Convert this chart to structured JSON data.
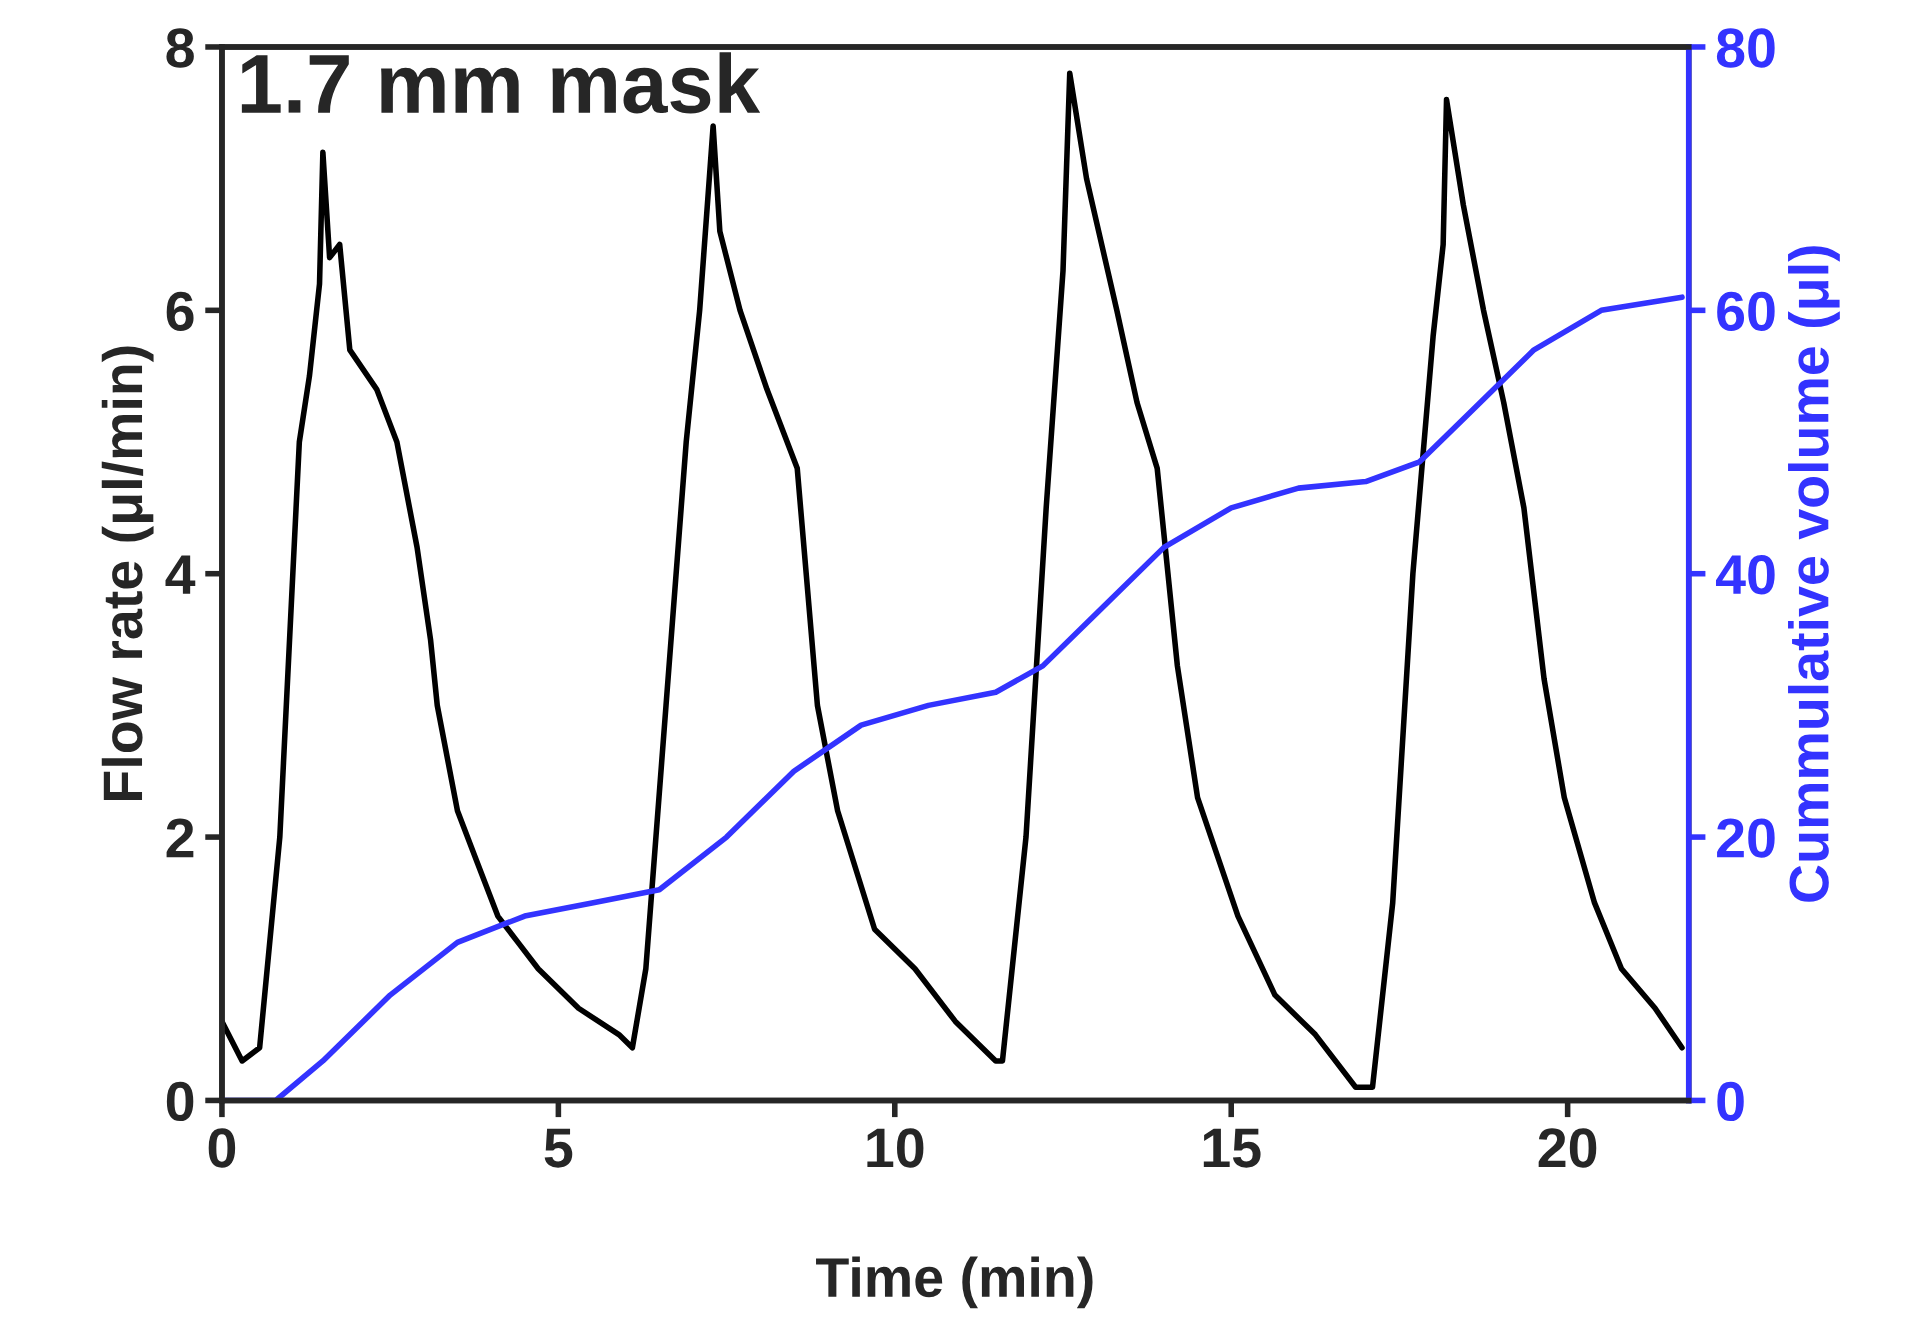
{
  "chart_data": {
    "type": "line",
    "xlabel": "Time (min)",
    "ylabel": "Flow rate (μl/min)",
    "y2label": "Cummulative volume (μl)",
    "annotations": [
      "1.7 mm mask"
    ],
    "xlim": [
      0,
      21.8
    ],
    "xticks": [
      0,
      5,
      10,
      15,
      20
    ],
    "ylim": [
      0,
      8
    ],
    "yticks": [
      0,
      2,
      4,
      6,
      8
    ],
    "y2lim": [
      0,
      80
    ],
    "y2ticks": [
      0,
      20,
      40,
      60,
      80
    ],
    "grid": false,
    "legend": false,
    "series": [
      {
        "color": "#000000",
        "x": [
          0,
          0.3,
          0.56,
          0.86,
          1.15,
          1.3,
          1.45,
          1.5,
          1.6,
          1.75,
          1.9,
          2.3,
          2.6,
          2.9,
          3.1,
          3.2,
          3.5,
          3.8,
          4.1,
          4.4,
          4.7,
          5.3,
          5.9,
          6.1,
          6.3,
          6.6,
          6.9,
          7.1,
          7.3,
          7.4,
          7.7,
          8.1,
          8.55,
          8.85,
          9.15,
          9.7,
          10.3,
          10.9,
          11.5,
          11.6,
          11.95,
          12.25,
          12.5,
          12.6,
          12.85,
          13.3,
          13.6,
          13.9,
          14.2,
          14.5,
          15.1,
          15.65,
          16.25,
          16.85,
          17.1,
          17.4,
          17.7,
          18.0,
          18.15,
          18.2,
          18.45,
          18.75,
          19.05,
          19.35,
          19.65,
          19.95,
          20.4,
          20.8,
          21.3,
          21.7
        ],
        "values": [
          0.6,
          0.3,
          0.4,
          2,
          5,
          5.5,
          6.2,
          7.2,
          6.4,
          6.5,
          5.7,
          5.4,
          5.0,
          4.2,
          3.5,
          3.0,
          2.2,
          1.8,
          1.4,
          1.2,
          1.0,
          0.7,
          0.5,
          0.4,
          1,
          3,
          5,
          6.0,
          7.4,
          6.6,
          6.0,
          5.4,
          4.8,
          3.0,
          2.2,
          1.3,
          1.0,
          0.6,
          0.3,
          0.3,
          2,
          4.5,
          6.3,
          7.8,
          7.0,
          6.0,
          5.3,
          4.8,
          3.3,
          2.3,
          1.4,
          0.8,
          0.5,
          0.1,
          0.1,
          1.5,
          4.0,
          5.8,
          6.5,
          7.6,
          6.8,
          6.0,
          5.3,
          4.5,
          3.2,
          2.3,
          1.5,
          1.0,
          0.7,
          0.4
        ]
      },
      {
        "color": "#3333ff",
        "axis": "y2",
        "x": [
          0,
          0.8,
          1.5,
          2.5,
          3.5,
          4.5,
          5.5,
          6.5,
          7.5,
          8.5,
          9.5,
          10.5,
          11.5,
          12.2,
          13,
          14,
          15,
          16,
          17,
          17.8,
          18.5,
          19.5,
          20.5,
          21.7
        ],
        "values": [
          0,
          0,
          3,
          8,
          12,
          14,
          15,
          16,
          20,
          25,
          28.5,
          30,
          31,
          33,
          37,
          42,
          45,
          46.5,
          47,
          48.5,
          52,
          57,
          60,
          61
        ]
      }
    ]
  }
}
